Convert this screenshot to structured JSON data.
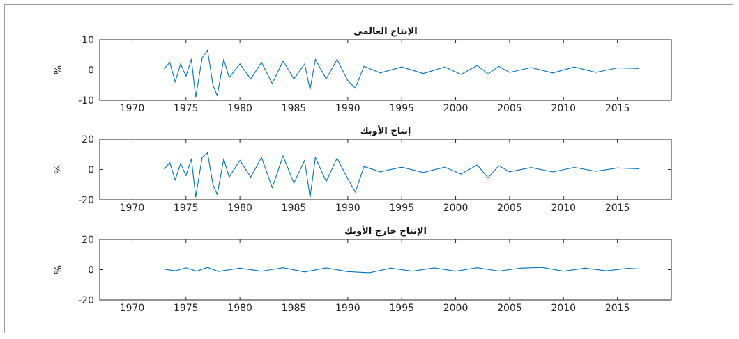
{
  "chart_data": [
    {
      "type": "line",
      "title": "الإنتاج العالمي",
      "ylabel": "%",
      "xlim": [
        1967,
        2020
      ],
      "ylim": [
        -10,
        10
      ],
      "xticks": [
        1970,
        1975,
        1980,
        1985,
        1990,
        1995,
        2000,
        2005,
        2010,
        2015
      ],
      "yticks": [
        -10,
        0,
        10
      ],
      "line_color": "#0072BD",
      "series": [
        {
          "x": [
            1973.0,
            1973.5,
            1974.0,
            1974.5,
            1975.0,
            1975.5,
            1975.9,
            1976.5,
            1977.0,
            1977.5,
            1977.9,
            1978.5,
            1979.0,
            1980.0,
            1981.0,
            1982.0,
            1983.0,
            1984.0,
            1985.0,
            1986.0,
            1986.5,
            1987.0,
            1988.0,
            1989.0,
            1990.0,
            1990.7,
            1991.5,
            1993.0,
            1995.0,
            1997.0,
            1999.0,
            2000.5,
            2002.0,
            2003.0,
            2004.0,
            2005.0,
            2007.0,
            2009.0,
            2011.0,
            2013.0,
            2015.0,
            2017.0
          ],
          "y": [
            0.5,
            2.5,
            -4.0,
            2.0,
            -2.0,
            3.5,
            -9.0,
            4.0,
            6.5,
            -5.0,
            -8.5,
            3.5,
            -2.5,
            2.0,
            -3.0,
            2.5,
            -4.5,
            3.0,
            -3.0,
            2.0,
            -6.5,
            3.5,
            -3.0,
            3.5,
            -3.5,
            -6.0,
            1.2,
            -1.0,
            1.0,
            -1.2,
            1.0,
            -1.5,
            1.5,
            -1.3,
            1.2,
            -0.8,
            0.8,
            -1.0,
            1.0,
            -0.8,
            0.7,
            0.5
          ]
        }
      ]
    },
    {
      "type": "line",
      "title": "إنتاج الأوبك",
      "ylabel": "%",
      "xlim": [
        1967,
        2020
      ],
      "ylim": [
        -20,
        20
      ],
      "xticks": [
        1970,
        1975,
        1980,
        1985,
        1990,
        1995,
        2000,
        2005,
        2010,
        2015
      ],
      "yticks": [
        -20,
        0,
        20
      ],
      "line_color": "#0072BD",
      "series": [
        {
          "x": [
            1973.0,
            1973.5,
            1974.0,
            1974.5,
            1975.0,
            1975.5,
            1975.9,
            1976.5,
            1977.0,
            1977.5,
            1977.9,
            1978.5,
            1979.0,
            1980.0,
            1981.0,
            1982.0,
            1983.0,
            1984.0,
            1985.0,
            1986.0,
            1986.5,
            1987.0,
            1988.0,
            1989.0,
            1990.0,
            1990.7,
            1991.5,
            1993.0,
            1995.0,
            1997.0,
            1999.0,
            2000.5,
            2002.0,
            2003.0,
            2004.0,
            2005.0,
            2007.0,
            2009.0,
            2011.0,
            2013.0,
            2015.0,
            2017.0
          ],
          "y": [
            0.5,
            4.5,
            -7.0,
            4.0,
            -4.0,
            7.0,
            -18.0,
            8.0,
            11.0,
            -10.0,
            -16.5,
            7.0,
            -5.0,
            6.0,
            -5.0,
            8.0,
            -12.0,
            9.0,
            -9.0,
            6.0,
            -18.5,
            8.0,
            -8.0,
            7.5,
            -6.0,
            -15.0,
            2.0,
            -1.5,
            1.5,
            -2.0,
            1.5,
            -3.0,
            3.0,
            -5.5,
            2.5,
            -1.5,
            1.3,
            -1.6,
            1.4,
            -1.2,
            1.0,
            0.5
          ]
        }
      ]
    },
    {
      "type": "line",
      "title": "الإنتاج خارج الأوبك",
      "ylabel": "%",
      "xlim": [
        1967,
        2020
      ],
      "ylim": [
        -20,
        20
      ],
      "xticks": [
        1970,
        1975,
        1980,
        1985,
        1990,
        1995,
        2000,
        2005,
        2010,
        2015
      ],
      "yticks": [
        -20,
        0,
        20
      ],
      "line_color": "#0072BD",
      "series": [
        {
          "x": [
            1973.0,
            1974.0,
            1975.0,
            1976.0,
            1977.0,
            1978.0,
            1980.0,
            1982.0,
            1984.0,
            1986.0,
            1988.0,
            1990.0,
            1992.0,
            1994.0,
            1996.0,
            1998.0,
            2000.0,
            2002.0,
            2004.0,
            2006.0,
            2008.0,
            2010.0,
            2012.0,
            2014.0,
            2016.0,
            2017.0
          ],
          "y": [
            0.3,
            -0.8,
            1.2,
            -1.0,
            1.5,
            -1.2,
            1.0,
            -1.0,
            1.3,
            -1.5,
            1.2,
            -1.3,
            -2.0,
            1.0,
            -1.0,
            1.2,
            -1.0,
            1.3,
            -0.9,
            1.0,
            1.5,
            -1.0,
            1.0,
            -0.8,
            0.9,
            0.5
          ]
        }
      ]
    }
  ]
}
